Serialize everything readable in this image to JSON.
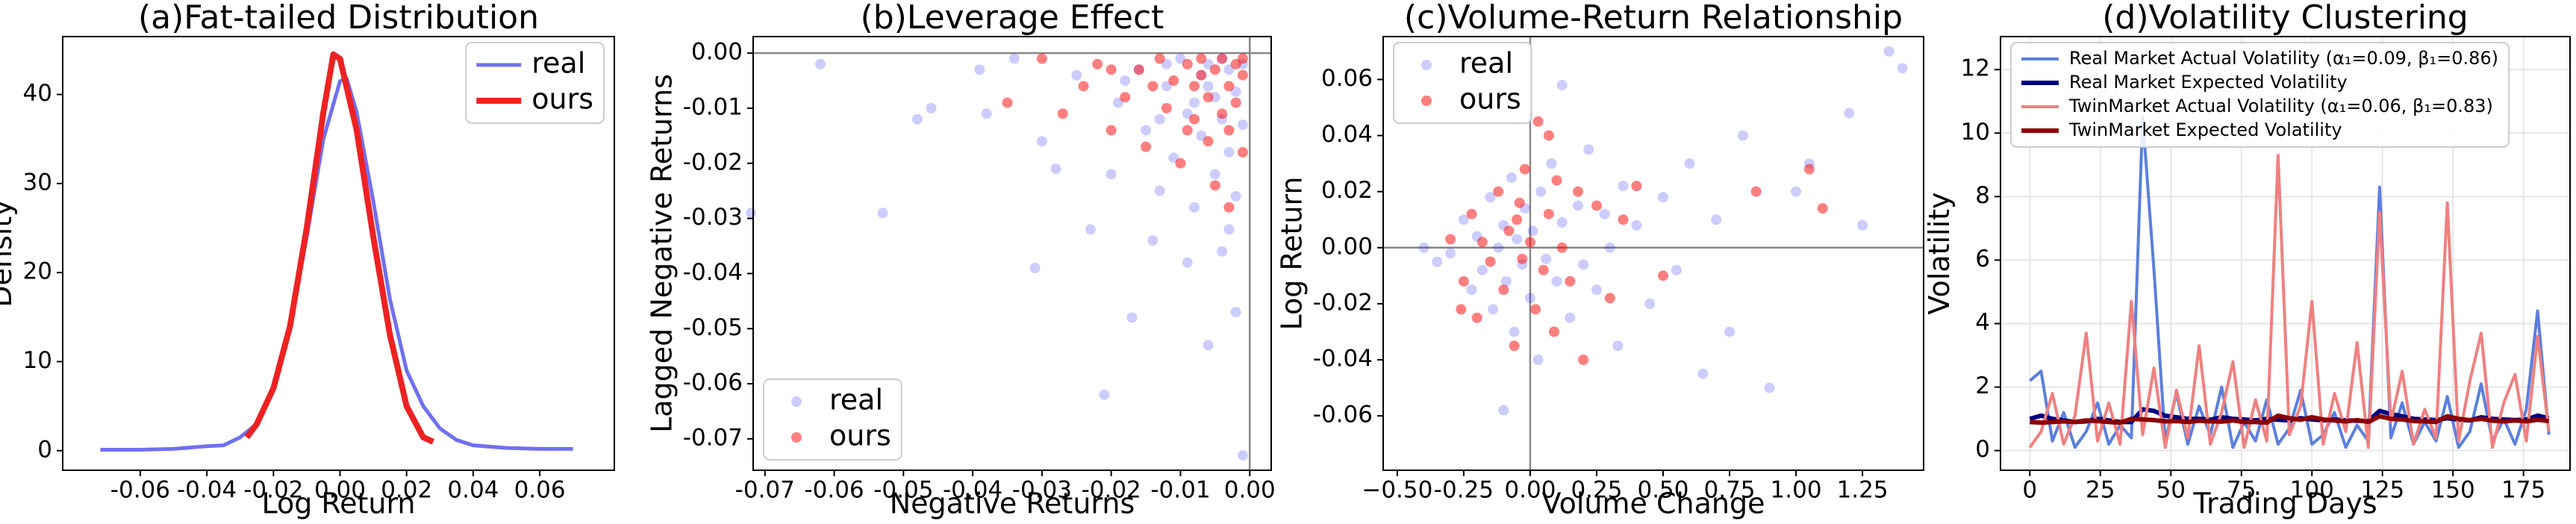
{
  "chart_data": [
    {
      "type": "line",
      "title": "(a)Fat-tailed Distribution",
      "xlabel": "Log Return",
      "ylabel": "Density",
      "xlim": [
        -0.0833,
        0.0824
      ],
      "ylim": [
        -2.2,
        46.5
      ],
      "xticks": [
        -0.06,
        -0.04,
        -0.02,
        {
          "value": 0,
          "label": "0.00"
        },
        0.02,
        0.04,
        0.06
      ],
      "yticks": [
        0,
        10,
        20,
        30,
        40
      ],
      "grid": false,
      "legend": "upper right",
      "series": [
        {
          "name": "real",
          "color": "#7070f0",
          "linewidth": 5,
          "x": [
            -0.072,
            -0.06,
            -0.05,
            -0.04,
            -0.035,
            -0.03,
            -0.025,
            -0.02,
            -0.015,
            -0.01,
            -0.005,
            0,
            0.002,
            0.005,
            0.01,
            0.015,
            0.02,
            0.025,
            0.03,
            0.035,
            0.04,
            0.05,
            0.06,
            0.07
          ],
          "values": [
            0.1,
            0.1,
            0.2,
            0.5,
            0.6,
            1.5,
            3,
            7,
            14,
            24,
            35,
            41.5,
            41.8,
            38,
            28,
            17,
            9,
            5,
            2.5,
            1.2,
            0.6,
            0.3,
            0.2,
            0.2
          ]
        },
        {
          "name": "ours",
          "color": "#ee2222",
          "linewidth": 8,
          "x": [
            -0.028,
            -0.025,
            -0.02,
            -0.015,
            -0.01,
            -0.005,
            -0.002,
            0,
            0.005,
            0.01,
            0.015,
            0.02,
            0.025,
            0.028
          ],
          "values": [
            1.5,
            3,
            7,
            14,
            25,
            38,
            44.5,
            44,
            36,
            24,
            13,
            5,
            1.5,
            1.0
          ]
        }
      ]
    },
    {
      "type": "scatter",
      "title": "(b)Leverage Effect",
      "xlabel": "Negative Returns",
      "ylabel": "Lagged Negative Returns",
      "xlim": [
        -0.0717,
        0.0031
      ],
      "ylim": [
        -0.0757,
        0.003
      ],
      "xticks": [
        -0.07,
        -0.06,
        -0.05,
        -0.04,
        -0.03,
        -0.02,
        -0.01,
        {
          "value": 0,
          "label": "0.00"
        }
      ],
      "yticks": [
        {
          "value": 0,
          "label": "0.00"
        },
        -0.01,
        -0.02,
        -0.03,
        -0.04,
        -0.05,
        -0.06,
        -0.07
      ],
      "grid": false,
      "zero_lines": true,
      "legend": "lower left",
      "series": [
        {
          "name": "real",
          "color": "#0000ff",
          "alpha": 0.2,
          "x": [
            -0.072,
            -0.062,
            -0.053,
            -0.048,
            -0.046,
            -0.039,
            -0.038,
            -0.034,
            -0.031,
            -0.03,
            -0.028,
            -0.025,
            -0.023,
            -0.021,
            -0.02,
            -0.019,
            -0.017,
            -0.016,
            -0.015,
            -0.014,
            -0.013,
            -0.012,
            -0.011,
            -0.01,
            -0.009,
            -0.009,
            -0.008,
            -0.007,
            -0.007,
            -0.006,
            -0.006,
            -0.005,
            -0.005,
            -0.004,
            -0.004,
            -0.003,
            -0.003,
            -0.002,
            -0.002,
            -0.002,
            -0.001,
            -0.001,
            -0.001,
            -0.012,
            -0.018,
            -0.004,
            -0.008,
            -0.013,
            -0.003,
            -0.006
          ],
          "values": [
            -0.029,
            -0.002,
            -0.029,
            -0.012,
            -0.01,
            -0.003,
            -0.011,
            -0.001,
            -0.039,
            -0.016,
            -0.021,
            -0.004,
            -0.032,
            -0.062,
            -0.022,
            -0.009,
            -0.048,
            -0.003,
            -0.014,
            -0.034,
            -0.025,
            -0.006,
            -0.019,
            -0.001,
            -0.038,
            -0.011,
            -0.028,
            -0.004,
            -0.015,
            -0.053,
            -0.002,
            -0.022,
            -0.008,
            -0.036,
            -0.012,
            -0.003,
            -0.018,
            -0.047,
            -0.007,
            -0.026,
            -0.002,
            -0.013,
            -0.073,
            -0.002,
            -0.005,
            -0.001,
            -0.009,
            -0.012,
            -0.032,
            -0.006
          ]
        },
        {
          "name": "ours",
          "color": "#ff0000",
          "alpha": 0.5,
          "x": [
            -0.035,
            -0.03,
            -0.027,
            -0.024,
            -0.022,
            -0.02,
            -0.018,
            -0.016,
            -0.015,
            -0.013,
            -0.012,
            -0.011,
            -0.01,
            -0.009,
            -0.008,
            -0.008,
            -0.007,
            -0.006,
            -0.006,
            -0.005,
            -0.005,
            -0.004,
            -0.004,
            -0.003,
            -0.003,
            -0.002,
            -0.002,
            -0.001,
            -0.001,
            -0.001,
            -0.014,
            -0.009,
            -0.003,
            -0.02,
            -0.007
          ],
          "values": [
            -0.009,
            -0.001,
            -0.011,
            -0.006,
            -0.002,
            -0.014,
            -0.008,
            -0.003,
            -0.017,
            -0.001,
            -0.01,
            -0.005,
            -0.02,
            -0.002,
            -0.012,
            -0.006,
            -0.001,
            -0.016,
            -0.008,
            -0.003,
            -0.024,
            -0.011,
            -0.001,
            -0.006,
            -0.014,
            -0.002,
            -0.009,
            -0.004,
            -0.018,
            -0.001,
            -0.006,
            -0.014,
            -0.028,
            -0.003,
            -0.004
          ]
        }
      ]
    },
    {
      "type": "scatter",
      "title": "(c)Volume-Return Relationship",
      "xlabel": "Volume Change",
      "ylabel": "Log Return",
      "xlim": [
        -0.553,
        1.48
      ],
      "ylim": [
        -0.0794,
        0.0753
      ],
      "xticks": [
        {
          "value": -0.5,
          "label": "−0.50"
        },
        -0.25,
        {
          "value": 0,
          "label": "0.00"
        },
        0.25,
        {
          "value": 0.5,
          "label": "0.50"
        },
        0.75,
        {
          "value": 1,
          "label": "1.00"
        },
        1.25
      ],
      "yticks": [
        -0.06,
        -0.04,
        -0.02,
        {
          "value": 0,
          "label": "0.00"
        },
        0.02,
        0.04,
        0.06
      ],
      "grid": false,
      "zero_lines": true,
      "legend": "upper left",
      "series": [
        {
          "name": "real",
          "color": "#0000ff",
          "alpha": 0.2,
          "x": [
            -0.3,
            -0.25,
            -0.22,
            -0.2,
            -0.18,
            -0.15,
            -0.14,
            -0.12,
            -0.1,
            -0.09,
            -0.07,
            -0.06,
            -0.05,
            -0.03,
            -0.02,
            0,
            0.01,
            0.03,
            0.04,
            0.06,
            0.08,
            0.1,
            0.12,
            0.15,
            0.18,
            0.2,
            0.22,
            0.25,
            0.28,
            0.3,
            0.33,
            0.35,
            0.4,
            0.45,
            0.5,
            0.55,
            0.6,
            0.65,
            0.7,
            0.75,
            0.8,
            0.9,
            1.0,
            1.05,
            1.2,
            1.25,
            1.35,
            1.4,
            -0.1,
            0.12,
            -0.4,
            -0.35
          ],
          "values": [
            -0.002,
            0.01,
            -0.015,
            0.004,
            -0.008,
            0.018,
            -0.022,
            0,
            0.008,
            -0.012,
            0.025,
            -0.03,
            0.003,
            -0.006,
            0.014,
            -0.018,
            0.006,
            -0.04,
            0.02,
            -0.004,
            0.03,
            -0.012,
            0.009,
            -0.025,
            0.015,
            -0.006,
            0.035,
            -0.015,
            0.012,
            0,
            -0.035,
            0.022,
            0.008,
            -0.02,
            0.018,
            -0.008,
            0.03,
            -0.045,
            0.01,
            -0.03,
            0.04,
            -0.05,
            0.02,
            0.03,
            0.048,
            0.008,
            0.07,
            0.064,
            -0.058,
            0.058,
            0,
            -0.005
          ]
        },
        {
          "name": "ours",
          "color": "#ff0000",
          "alpha": 0.5,
          "x": [
            -0.3,
            -0.25,
            -0.22,
            -0.2,
            -0.18,
            -0.15,
            -0.12,
            -0.1,
            -0.08,
            -0.06,
            -0.05,
            -0.03,
            -0.02,
            0,
            0.02,
            0.03,
            0.05,
            0.07,
            0.09,
            0.1,
            0.12,
            0.15,
            0.18,
            0.2,
            0.25,
            0.3,
            0.35,
            0.4,
            0.5,
            0.85,
            1.05,
            1.1,
            -0.26,
            0.07,
            -0.04
          ],
          "values": [
            0.003,
            -0.012,
            0.012,
            -0.025,
            0.002,
            -0.005,
            0.02,
            -0.015,
            0.006,
            -0.035,
            0.01,
            -0.004,
            0.028,
            0.002,
            -0.022,
            0.045,
            -0.008,
            0.012,
            -0.03,
            0.024,
            0,
            -0.012,
            0.02,
            -0.04,
            0.015,
            -0.018,
            0.01,
            0.022,
            -0.01,
            0.02,
            0.028,
            0.014,
            -0.022,
            0.04,
            0.016
          ]
        }
      ]
    },
    {
      "type": "line",
      "title": "(d)Volatility Clustering",
      "xlabel": "Trading Days",
      "ylabel": "Volatility",
      "xlim": [
        -10.4,
        191.5
      ],
      "ylim": [
        -0.62,
        13.04
      ],
      "xticks": [
        0,
        25,
        50,
        75,
        100,
        125,
        150,
        175
      ],
      "yticks": [
        0,
        2,
        4,
        6,
        8,
        10,
        12
      ],
      "grid": true,
      "legend": "upper left",
      "x": [
        0,
        4,
        8,
        12,
        16,
        20,
        24,
        28,
        32,
        36,
        40,
        44,
        48,
        52,
        56,
        60,
        64,
        68,
        72,
        76,
        80,
        84,
        88,
        92,
        96,
        100,
        104,
        108,
        112,
        116,
        120,
        124,
        128,
        132,
        136,
        140,
        144,
        148,
        152,
        156,
        160,
        164,
        168,
        172,
        176,
        180,
        184
      ],
      "series": [
        {
          "name": "Real Market Actual Volatility (α₁=0.09, β₁=0.86)",
          "color": "#5b7fde",
          "linewidth": 4,
          "values": [
            2.2,
            2.5,
            0.3,
            1.2,
            0.1,
            0.6,
            1.5,
            0.2,
            0.8,
            0.4,
            10.5,
            5.7,
            0.3,
            1.8,
            0.2,
            1.4,
            0.5,
            2.0,
            0.1,
            0.9,
            0.3,
            1.6,
            0.2,
            0.7,
            1.9,
            0.2,
            0.5,
            1.2,
            0.1,
            0.8,
            0.3,
            8.3,
            0.4,
            1.5,
            0.2,
            0.9,
            0.3,
            1.7,
            0.1,
            0.6,
            2.1,
            0.3,
            1.0,
            0.2,
            1.3,
            4.4,
            0.5
          ]
        },
        {
          "name": "Real Market Expected Volatility",
          "color": "#000080",
          "linewidth": 6,
          "values": [
            1.0,
            1.1,
            1.0,
            0.95,
            0.9,
            0.92,
            1.0,
            0.95,
            0.9,
            0.9,
            1.3,
            1.25,
            1.1,
            1.05,
            1.0,
            1.0,
            0.97,
            1.05,
            1.0,
            0.98,
            0.95,
            1.0,
            0.97,
            0.95,
            1.02,
            0.98,
            0.95,
            0.98,
            0.95,
            0.94,
            0.93,
            1.25,
            1.15,
            1.08,
            1.0,
            0.98,
            0.96,
            1.02,
            0.97,
            0.95,
            1.05,
            1.0,
            0.98,
            0.96,
            0.98,
            1.1,
            1.02
          ]
        },
        {
          "name": "TwinMarket Actual Volatility (α₁=0.06, β₁=0.83)",
          "color": "#f08080",
          "linewidth": 4,
          "values": [
            0.1,
            0.6,
            1.8,
            0.2,
            1.1,
            3.7,
            0.3,
            1.5,
            0.2,
            4.7,
            0.5,
            2.6,
            0.1,
            1.9,
            0.4,
            3.3,
            0.2,
            1.2,
            2.8,
            0.1,
            1.6,
            0.3,
            9.3,
            0.5,
            1.4,
            4.7,
            0.2,
            1.8,
            0.6,
            3.4,
            0.1,
            7.5,
            0.9,
            2.5,
            0.2,
            1.3,
            0.4,
            7.8,
            0.3,
            2.2,
            3.7,
            0.1,
            1.5,
            2.4,
            0.3,
            3.6,
            0.6
          ]
        },
        {
          "name": "TwinMarket Expected Volatility",
          "color": "#8b0000",
          "linewidth": 6,
          "values": [
            0.9,
            0.88,
            0.9,
            0.92,
            0.9,
            0.95,
            0.93,
            0.9,
            0.88,
            1.0,
            0.98,
            0.96,
            0.92,
            0.93,
            0.9,
            0.94,
            0.92,
            0.91,
            0.95,
            0.9,
            0.9,
            0.88,
            1.1,
            1.02,
            0.97,
            1.05,
            0.98,
            0.95,
            0.92,
            0.96,
            0.9,
            1.08,
            1.0,
            0.98,
            0.93,
            0.92,
            0.9,
            1.08,
            1.0,
            0.96,
            1.0,
            0.94,
            0.92,
            0.95,
            0.92,
            0.97,
            0.93
          ]
        }
      ]
    }
  ]
}
